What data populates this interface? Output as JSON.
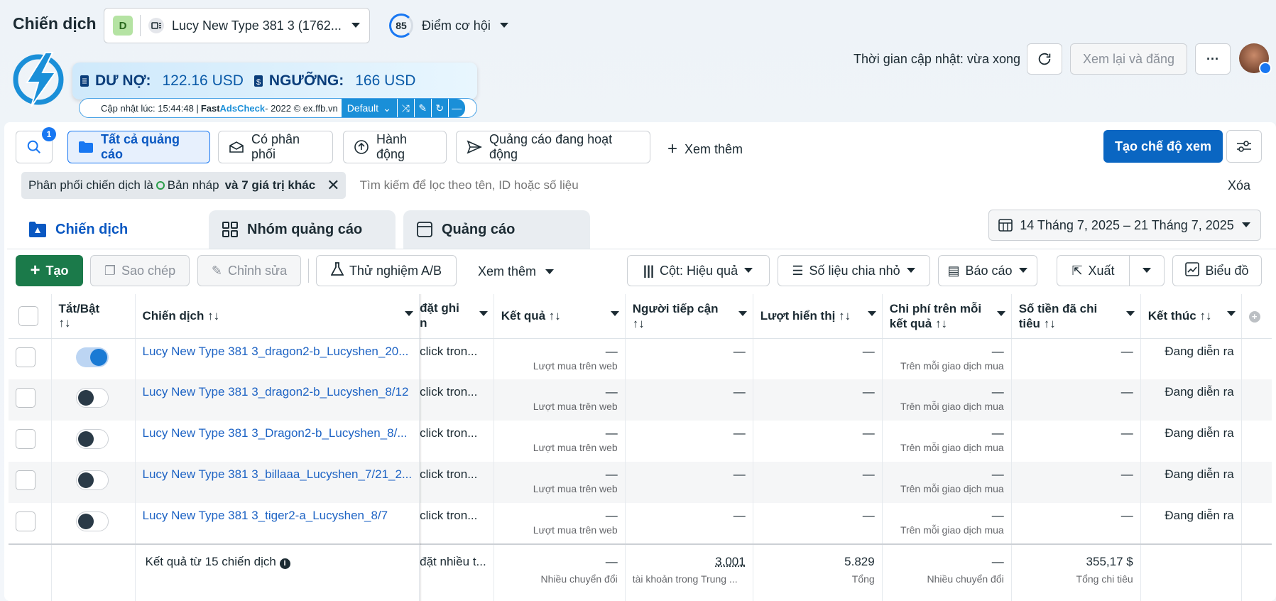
{
  "header": {
    "title": "Chiến dịch",
    "account_badge": "D",
    "account_name": "Lucy New Type 381 3 (1762...",
    "score": "85",
    "score_label": "Điểm cơ hội",
    "updated": "Thời gian cập nhật: vừa xong",
    "review_btn": "Xem lại và đăng",
    "more": "···"
  },
  "ext": {
    "du_no_label": "DƯ NỢ:",
    "du_no": "122.16 USD",
    "nguong_label": "NGƯỠNG:",
    "nguong": "166 USD",
    "updated": "Cập nhật lúc: 15:44:48 | ",
    "fast": "Fast ",
    "adscheck": "AdsCheck",
    "copyright": " - 2022 © ex.ffb.vn",
    "default": "Default"
  },
  "toolbar": {
    "search_count": "1",
    "all_ads": "Tất cả quảng cáo",
    "delivered": "Có phân phối",
    "actions": "Hành động",
    "active_ads": "Quảng cáo đang hoạt động",
    "see_more": "Xem thêm",
    "create_view": "Tạo chế độ xem"
  },
  "filter": {
    "prefix": "Phân phối chiến dịch là ",
    "draft": "Bản nháp",
    "suffix": " và 7 giá trị khác",
    "placeholder": "Tìm kiếm để lọc theo tên, ID hoặc số liệu",
    "clear": "Xóa"
  },
  "tabs": {
    "campaign": "Chiến dịch",
    "adsets": "Nhóm quảng cáo",
    "ads": "Quảng cáo",
    "date_range": "14 Tháng 7, 2025 – 21 Tháng 7, 2025"
  },
  "actions": {
    "create": "Tạo",
    "copy": "Sao chép",
    "edit": "Chỉnh sửa",
    "ab": "Thử nghiệm A/B",
    "more": "Xem thêm",
    "columns": "Cột: Hiệu quả",
    "breakdown": "Số liệu chia nhỏ",
    "reports": "Báo cáo",
    "export": "Xuất",
    "charts": "Biểu đồ"
  },
  "columns": {
    "toggle": "Tắt/Bật",
    "campaign": "Chiến dịch",
    "attribution": "đặt ghi",
    "attribution2": "n",
    "results": "Kết quả",
    "reach": "Người tiếp cận",
    "impressions": "Lượt hiển thị",
    "cpr": "Chi phí trên mỗi",
    "cpr2": "kết quả",
    "spent": "Số tiền đã chi",
    "spent2": "tiêu",
    "ends": "Kết thúc",
    "sort": "↑↓"
  },
  "rows": [
    {
      "name": "Lucy New Type 381 3_dragon2-b_Lucyshen_20...",
      "attr": "click tron...",
      "result": "—",
      "result_sub": "Lượt mua trên web",
      "reach": "—",
      "impr": "—",
      "cpr": "—",
      "cpr_sub": "Trên mỗi giao dịch mua",
      "spent": "—",
      "ends": "Đang diễn ra",
      "on": true
    },
    {
      "name": "Lucy New Type 381 3_dragon2-b_Lucyshen_8/12",
      "attr": "click tron...",
      "result": "—",
      "result_sub": "Lượt mua trên web",
      "reach": "—",
      "impr": "—",
      "cpr": "—",
      "cpr_sub": "Trên mỗi giao dịch mua",
      "spent": "—",
      "ends": "Đang diễn ra",
      "on": false
    },
    {
      "name": "Lucy New Type 381 3_Dragon2-b_Lucyshen_8/...",
      "attr": "click tron...",
      "result": "—",
      "result_sub": "Lượt mua trên web",
      "reach": "—",
      "impr": "—",
      "cpr": "—",
      "cpr_sub": "Trên mỗi giao dịch mua",
      "spent": "—",
      "ends": "Đang diễn ra",
      "on": false
    },
    {
      "name": "Lucy New Type 381 3_billaaa_Lucyshen_7/21_2...",
      "attr": "click tron...",
      "result": "—",
      "result_sub": "Lượt mua trên web",
      "reach": "—",
      "impr": "—",
      "cpr": "—",
      "cpr_sub": "Trên mỗi giao dịch mua",
      "spent": "—",
      "ends": "Đang diễn ra",
      "on": false
    },
    {
      "name": "Lucy New Type 381 3_tiger2-a_Lucyshen_8/7",
      "attr": "click tron...",
      "result": "—",
      "result_sub": "Lượt mua trên web",
      "reach": "—",
      "impr": "—",
      "cpr": "—",
      "cpr_sub": "Trên mỗi giao dịch mua",
      "spent": "—",
      "ends": "Đang diễn ra",
      "on": false
    }
  ],
  "footer": {
    "label": "Kết quả từ 15 chiến dịch",
    "attr": "đặt nhiều t...",
    "result": "—",
    "result_sub": "Nhiều chuyển đổi",
    "reach": "3.001",
    "reach_sub": "tài khoản trong Trung ...",
    "impr": "5.829",
    "impr_sub": "Tổng",
    "cpr": "—",
    "cpr_sub": "Nhiều chuyển đổi",
    "spent": "355,17 $",
    "spent_sub": "Tổng chi tiêu"
  },
  "colors": {
    "accent": "#1877f2",
    "primary_btn": "#0a66c2",
    "create_btn": "#1b7a4a",
    "link": "#1d63c4"
  }
}
